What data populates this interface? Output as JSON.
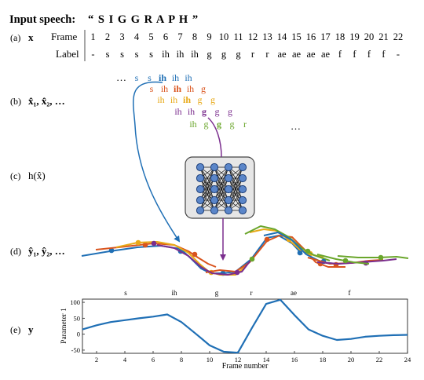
{
  "header": {
    "input_label": "Input speech:",
    "input_value": "“ S I G G R A P H ”"
  },
  "row_a": {
    "tag": "(a)",
    "symbol": "x",
    "frame_label": "Frame",
    "label_label": "Label",
    "frames": [
      "1",
      "2",
      "3",
      "4",
      "5",
      "6",
      "7",
      "8",
      "9",
      "10",
      "11",
      "12",
      "13",
      "14",
      "15",
      "16",
      "17",
      "18",
      "19",
      "20",
      "21",
      "22"
    ],
    "labels": [
      "-",
      "s",
      "s",
      "s",
      "s",
      "ih",
      "ih",
      "ih",
      "g",
      "g",
      "g",
      "r",
      "r",
      "ae",
      "ae",
      "ae",
      "ae",
      "f",
      "f",
      "f",
      "f",
      "-"
    ]
  },
  "row_b": {
    "tag": "(b)",
    "symbol": "x̂₁, x̂₂, …",
    "ellipsis_left": "…",
    "ellipsis_right": "…",
    "windows": [
      {
        "color": "#1f6fb5",
        "tokens": [
          "s",
          "s",
          "ih",
          "ih",
          "ih"
        ],
        "bold_index": 2
      },
      {
        "color": "#d9541e",
        "tokens": [
          "s",
          "ih",
          "ih",
          "ih",
          "g"
        ],
        "bold_index": 2
      },
      {
        "color": "#e8a917",
        "tokens": [
          "ih",
          "ih",
          "ih",
          "g",
          "g"
        ],
        "bold_index": 2
      },
      {
        "color": "#7b2e8e",
        "tokens": [
          "ih",
          "ih",
          "g",
          "g",
          "g"
        ],
        "bold_index": 2
      },
      {
        "color": "#6aa62b",
        "tokens": [
          "ih",
          "g",
          "g",
          "g",
          "r"
        ],
        "bold_index": 2
      }
    ]
  },
  "row_c": {
    "tag": "(c)",
    "symbol": "h(x̂)"
  },
  "row_d": {
    "tag": "(d)",
    "symbol": "ŷ₁, ŷ₂, …"
  },
  "row_e": {
    "tag": "(e)",
    "symbol": "y",
    "phoneme_labels": [
      "s",
      "ih",
      "g",
      "r",
      "ae",
      "f"
    ]
  },
  "colors": {
    "blue": "#1f6fb5",
    "orange": "#d9541e",
    "yellow": "#e8a917",
    "purple": "#7b2e8e",
    "green": "#6aa62b"
  },
  "chart_data": {
    "type": "line",
    "xlabel": "Frame number",
    "ylabel": "Parameter 1",
    "xlim": [
      1,
      24
    ],
    "ylim": [
      -60,
      110
    ],
    "xticks": [
      2,
      4,
      6,
      8,
      10,
      12,
      14,
      16,
      18,
      20,
      22,
      24
    ],
    "yticks": [
      100,
      50,
      0,
      -50
    ],
    "series": [
      {
        "x": [
          1,
          2,
          3,
          4,
          5,
          6,
          7,
          8,
          9,
          10,
          11,
          12,
          13,
          14,
          15,
          16,
          17,
          18,
          19,
          20,
          21,
          22,
          23,
          24
        ],
        "values": [
          15,
          28,
          38,
          44,
          50,
          55,
          62,
          38,
          2,
          -35,
          -55,
          -58,
          20,
          95,
          108,
          60,
          15,
          -5,
          -18,
          -15,
          -8,
          -5,
          -3,
          -2
        ]
      }
    ]
  }
}
